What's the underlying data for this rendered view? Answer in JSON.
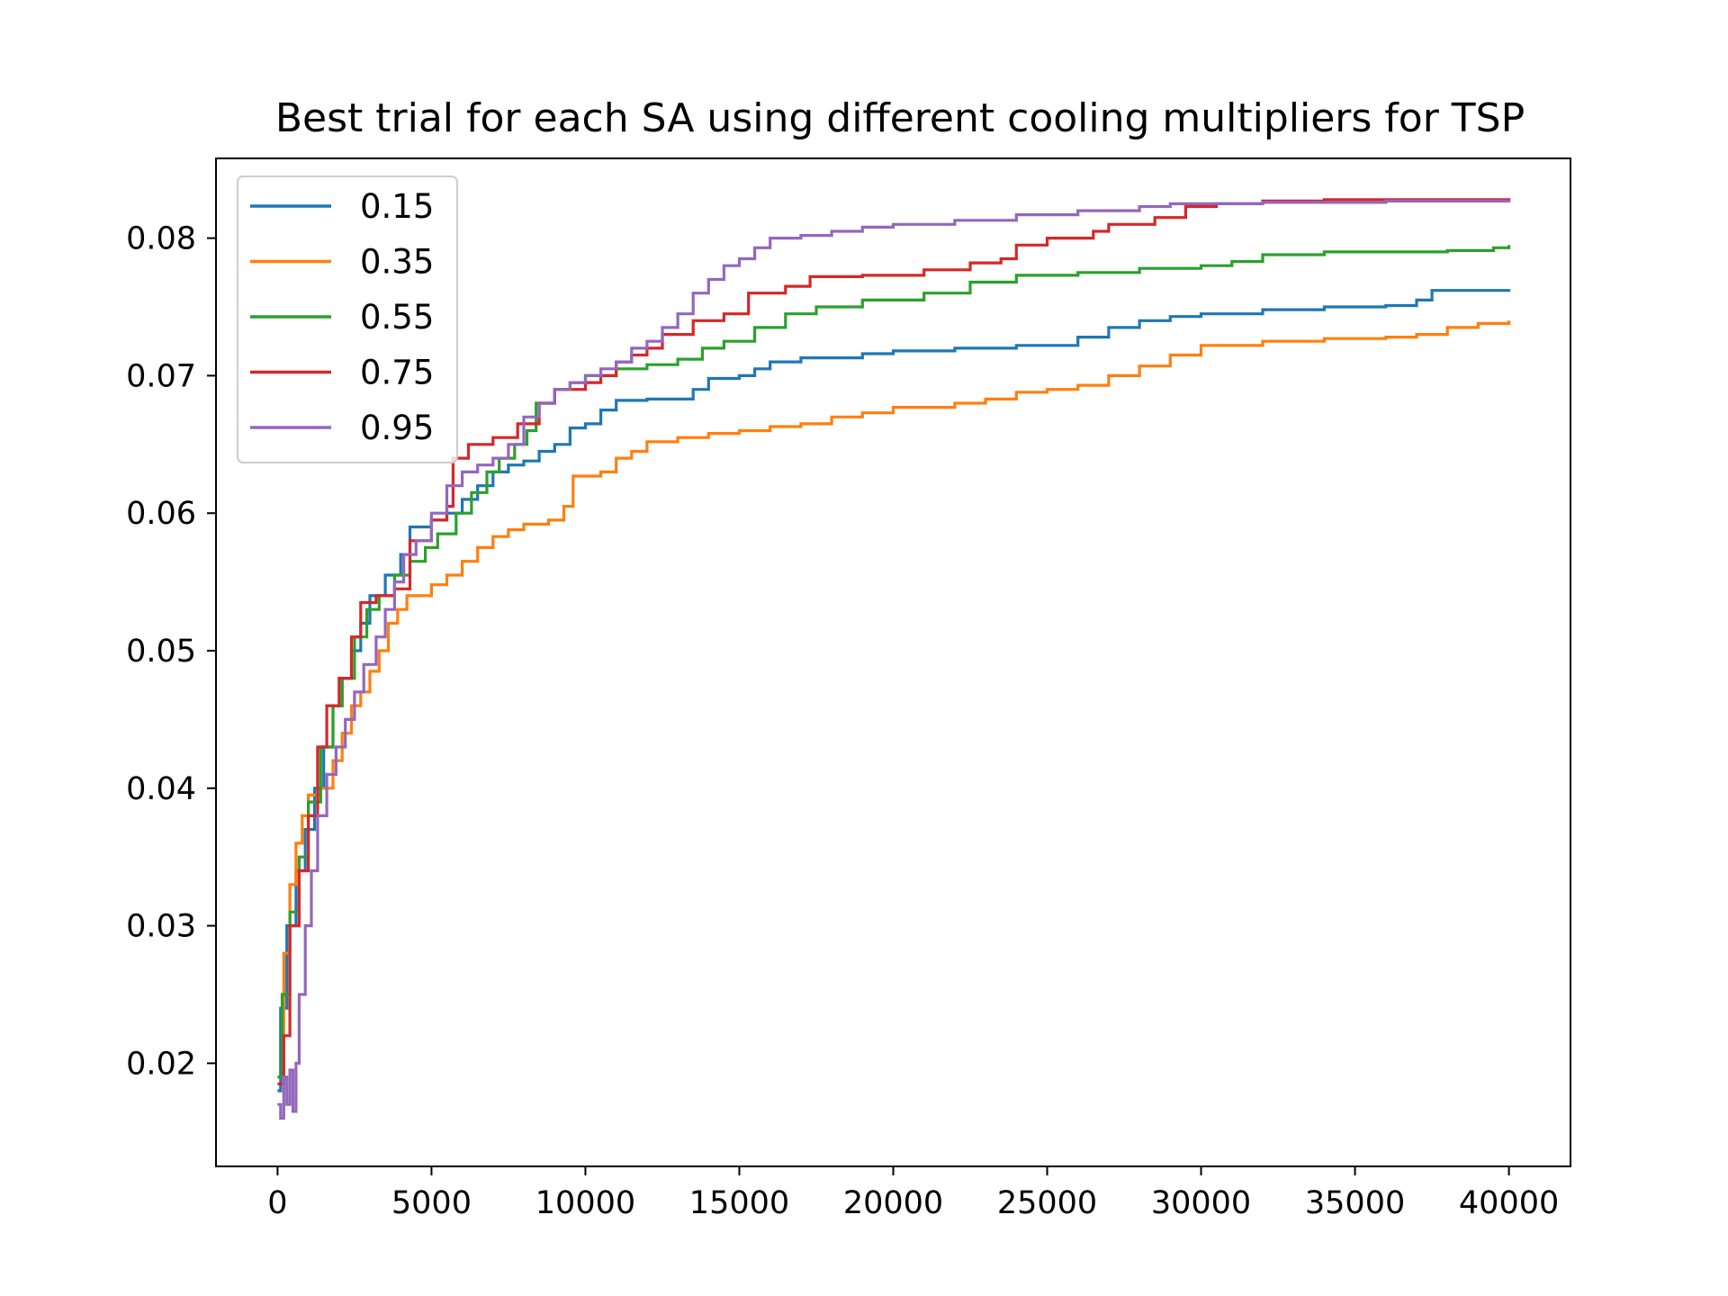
{
  "chart_data": {
    "type": "line",
    "title": "Best trial for each SA using different cooling multipliers for TSP",
    "xlabel": "",
    "ylabel": "",
    "xlim": [
      -2000,
      42000
    ],
    "ylim": [
      0.0125,
      0.0858
    ],
    "x_ticks": [
      0,
      5000,
      10000,
      15000,
      20000,
      25000,
      30000,
      35000,
      40000
    ],
    "x_tick_labels": [
      "0",
      "5000",
      "10000",
      "15000",
      "20000",
      "25000",
      "30000",
      "35000",
      "40000"
    ],
    "y_ticks": [
      0.02,
      0.03,
      0.04,
      0.05,
      0.06,
      0.07,
      0.08
    ],
    "y_tick_labels": [
      "0.02",
      "0.03",
      "0.04",
      "0.05",
      "0.06",
      "0.07",
      "0.08"
    ],
    "grid": false,
    "legend_position": "top-left",
    "series": [
      {
        "name": "0.15",
        "color": "#1f77b4",
        "step": true,
        "points": [
          [
            0,
            0.018
          ],
          [
            100,
            0.024
          ],
          [
            300,
            0.03
          ],
          [
            600,
            0.034
          ],
          [
            900,
            0.037
          ],
          [
            1200,
            0.04
          ],
          [
            1500,
            0.043
          ],
          [
            1800,
            0.046
          ],
          [
            2100,
            0.048
          ],
          [
            2400,
            0.05
          ],
          [
            2700,
            0.052
          ],
          [
            3000,
            0.054
          ],
          [
            3500,
            0.0555
          ],
          [
            4000,
            0.057
          ],
          [
            4300,
            0.059
          ],
          [
            5000,
            0.0595
          ],
          [
            5500,
            0.06
          ],
          [
            6000,
            0.061
          ],
          [
            6500,
            0.062
          ],
          [
            7000,
            0.063
          ],
          [
            7500,
            0.0635
          ],
          [
            8000,
            0.0638
          ],
          [
            8500,
            0.0645
          ],
          [
            9000,
            0.065
          ],
          [
            9500,
            0.0662
          ],
          [
            10000,
            0.0665
          ],
          [
            10500,
            0.0675
          ],
          [
            11000,
            0.0682
          ],
          [
            12000,
            0.0683
          ],
          [
            13500,
            0.069
          ],
          [
            14000,
            0.0698
          ],
          [
            15000,
            0.07
          ],
          [
            15500,
            0.0705
          ],
          [
            16000,
            0.071
          ],
          [
            17000,
            0.0713
          ],
          [
            19000,
            0.0716
          ],
          [
            20000,
            0.0718
          ],
          [
            22000,
            0.072
          ],
          [
            24000,
            0.0722
          ],
          [
            26000,
            0.0728
          ],
          [
            27000,
            0.0735
          ],
          [
            28000,
            0.074
          ],
          [
            29000,
            0.0743
          ],
          [
            30000,
            0.0745
          ],
          [
            32000,
            0.0748
          ],
          [
            34000,
            0.075
          ],
          [
            36000,
            0.0751
          ],
          [
            37000,
            0.0755
          ],
          [
            37500,
            0.0762
          ],
          [
            40000,
            0.0763
          ]
        ]
      },
      {
        "name": "0.35",
        "color": "#ff7f0e",
        "step": true,
        "points": [
          [
            0,
            0.019
          ],
          [
            200,
            0.028
          ],
          [
            400,
            0.033
          ],
          [
            600,
            0.036
          ],
          [
            800,
            0.038
          ],
          [
            1000,
            0.0395
          ],
          [
            1400,
            0.04
          ],
          [
            1800,
            0.042
          ],
          [
            2100,
            0.044
          ],
          [
            2400,
            0.046
          ],
          [
            2700,
            0.047
          ],
          [
            3000,
            0.0485
          ],
          [
            3300,
            0.05
          ],
          [
            3600,
            0.052
          ],
          [
            3900,
            0.053
          ],
          [
            4200,
            0.054
          ],
          [
            5000,
            0.0548
          ],
          [
            5500,
            0.0555
          ],
          [
            6000,
            0.0565
          ],
          [
            6500,
            0.0575
          ],
          [
            7000,
            0.0583
          ],
          [
            7500,
            0.0588
          ],
          [
            8000,
            0.0592
          ],
          [
            8800,
            0.0595
          ],
          [
            9300,
            0.0605
          ],
          [
            9600,
            0.0627
          ],
          [
            10500,
            0.063
          ],
          [
            11000,
            0.064
          ],
          [
            11500,
            0.0645
          ],
          [
            12000,
            0.0652
          ],
          [
            13000,
            0.0655
          ],
          [
            14000,
            0.0658
          ],
          [
            15000,
            0.066
          ],
          [
            16000,
            0.0663
          ],
          [
            17000,
            0.0665
          ],
          [
            18000,
            0.067
          ],
          [
            19000,
            0.0673
          ],
          [
            20000,
            0.0677
          ],
          [
            22000,
            0.068
          ],
          [
            23000,
            0.0683
          ],
          [
            24000,
            0.0688
          ],
          [
            25000,
            0.069
          ],
          [
            26000,
            0.0693
          ],
          [
            27000,
            0.07
          ],
          [
            28000,
            0.0707
          ],
          [
            29000,
            0.0715
          ],
          [
            30000,
            0.0722
          ],
          [
            32000,
            0.0725
          ],
          [
            34000,
            0.0727
          ],
          [
            36000,
            0.0728
          ],
          [
            37000,
            0.073
          ],
          [
            38000,
            0.0735
          ],
          [
            39000,
            0.0738
          ],
          [
            40000,
            0.074
          ]
        ]
      },
      {
        "name": "0.55",
        "color": "#2ca02c",
        "step": true,
        "points": [
          [
            0,
            0.019
          ],
          [
            150,
            0.025
          ],
          [
            400,
            0.031
          ],
          [
            700,
            0.035
          ],
          [
            1000,
            0.039
          ],
          [
            1400,
            0.043
          ],
          [
            1800,
            0.046
          ],
          [
            2100,
            0.048
          ],
          [
            2500,
            0.051
          ],
          [
            2900,
            0.053
          ],
          [
            3300,
            0.054
          ],
          [
            3800,
            0.0555
          ],
          [
            4300,
            0.0565
          ],
          [
            4800,
            0.0575
          ],
          [
            5200,
            0.0585
          ],
          [
            5800,
            0.06
          ],
          [
            6300,
            0.0615
          ],
          [
            6800,
            0.063
          ],
          [
            7200,
            0.064
          ],
          [
            7700,
            0.065
          ],
          [
            8100,
            0.066
          ],
          [
            8400,
            0.068
          ],
          [
            9000,
            0.069
          ],
          [
            9500,
            0.0695
          ],
          [
            10000,
            0.07
          ],
          [
            11000,
            0.0705
          ],
          [
            12000,
            0.0708
          ],
          [
            13000,
            0.0712
          ],
          [
            13800,
            0.072
          ],
          [
            14500,
            0.0725
          ],
          [
            15500,
            0.0735
          ],
          [
            16500,
            0.0745
          ],
          [
            17500,
            0.075
          ],
          [
            19000,
            0.0755
          ],
          [
            21000,
            0.076
          ],
          [
            22500,
            0.0768
          ],
          [
            24000,
            0.0773
          ],
          [
            26000,
            0.0775
          ],
          [
            28000,
            0.0778
          ],
          [
            30000,
            0.078
          ],
          [
            31000,
            0.0783
          ],
          [
            32000,
            0.0788
          ],
          [
            34000,
            0.079
          ],
          [
            38000,
            0.0791
          ],
          [
            39500,
            0.0793
          ],
          [
            40000,
            0.0795
          ]
        ]
      },
      {
        "name": "0.75",
        "color": "#d62728",
        "step": true,
        "points": [
          [
            0,
            0.0185
          ],
          [
            200,
            0.022
          ],
          [
            400,
            0.03
          ],
          [
            700,
            0.034
          ],
          [
            1000,
            0.038
          ],
          [
            1300,
            0.043
          ],
          [
            1600,
            0.046
          ],
          [
            2000,
            0.048
          ],
          [
            2400,
            0.051
          ],
          [
            2700,
            0.0535
          ],
          [
            3200,
            0.054
          ],
          [
            3800,
            0.0545
          ],
          [
            4300,
            0.058
          ],
          [
            5000,
            0.0595
          ],
          [
            5500,
            0.0605
          ],
          [
            5700,
            0.064
          ],
          [
            6200,
            0.065
          ],
          [
            7000,
            0.0655
          ],
          [
            7800,
            0.0665
          ],
          [
            8500,
            0.068
          ],
          [
            9000,
            0.069
          ],
          [
            10000,
            0.0695
          ],
          [
            10500,
            0.07
          ],
          [
            11000,
            0.071
          ],
          [
            11500,
            0.0715
          ],
          [
            12000,
            0.072
          ],
          [
            12500,
            0.073
          ],
          [
            13500,
            0.074
          ],
          [
            14500,
            0.0745
          ],
          [
            15300,
            0.076
          ],
          [
            16500,
            0.0765
          ],
          [
            17300,
            0.0772
          ],
          [
            19000,
            0.0773
          ],
          [
            21000,
            0.0777
          ],
          [
            22500,
            0.0782
          ],
          [
            23500,
            0.0785
          ],
          [
            24000,
            0.0795
          ],
          [
            25000,
            0.08
          ],
          [
            26500,
            0.0805
          ],
          [
            27000,
            0.081
          ],
          [
            28500,
            0.0815
          ],
          [
            29500,
            0.0823
          ],
          [
            30500,
            0.0825
          ],
          [
            32000,
            0.0827
          ],
          [
            34000,
            0.0828
          ],
          [
            40000,
            0.0829
          ]
        ]
      },
      {
        "name": "0.95",
        "color": "#9467bd",
        "step": true,
        "points": [
          [
            0,
            0.017
          ],
          [
            100,
            0.016
          ],
          [
            200,
            0.019
          ],
          [
            300,
            0.017
          ],
          [
            400,
            0.0195
          ],
          [
            500,
            0.0165
          ],
          [
            600,
            0.02
          ],
          [
            700,
            0.025
          ],
          [
            900,
            0.03
          ],
          [
            1100,
            0.034
          ],
          [
            1300,
            0.038
          ],
          [
            1600,
            0.041
          ],
          [
            1900,
            0.043
          ],
          [
            2200,
            0.045
          ],
          [
            2500,
            0.047
          ],
          [
            2800,
            0.049
          ],
          [
            3200,
            0.051
          ],
          [
            3500,
            0.053
          ],
          [
            3800,
            0.055
          ],
          [
            4100,
            0.057
          ],
          [
            4500,
            0.058
          ],
          [
            5000,
            0.06
          ],
          [
            5500,
            0.062
          ],
          [
            6000,
            0.063
          ],
          [
            6500,
            0.0635
          ],
          [
            7000,
            0.064
          ],
          [
            7500,
            0.065
          ],
          [
            8000,
            0.067
          ],
          [
            8500,
            0.068
          ],
          [
            9000,
            0.069
          ],
          [
            9500,
            0.0695
          ],
          [
            10000,
            0.07
          ],
          [
            10500,
            0.0705
          ],
          [
            11000,
            0.071
          ],
          [
            11500,
            0.072
          ],
          [
            12000,
            0.0725
          ],
          [
            12500,
            0.0735
          ],
          [
            13000,
            0.0745
          ],
          [
            13500,
            0.076
          ],
          [
            14000,
            0.077
          ],
          [
            14500,
            0.078
          ],
          [
            15000,
            0.0785
          ],
          [
            15500,
            0.0793
          ],
          [
            16000,
            0.08
          ],
          [
            17000,
            0.0802
          ],
          [
            18000,
            0.0805
          ],
          [
            19000,
            0.0808
          ],
          [
            20000,
            0.081
          ],
          [
            22000,
            0.0813
          ],
          [
            24000,
            0.0817
          ],
          [
            26000,
            0.082
          ],
          [
            28000,
            0.0823
          ],
          [
            29000,
            0.0825
          ],
          [
            32000,
            0.0826
          ],
          [
            36000,
            0.0827
          ],
          [
            40000,
            0.0828
          ]
        ]
      }
    ]
  }
}
